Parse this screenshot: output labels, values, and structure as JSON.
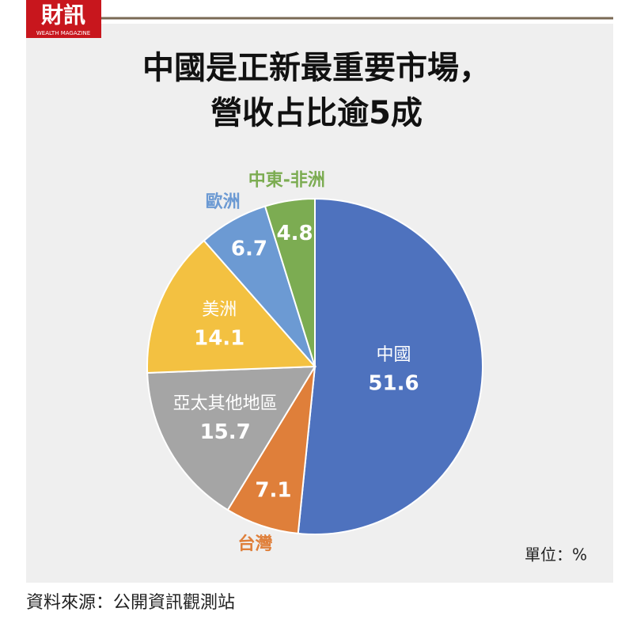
{
  "header": {
    "logo": "財訊",
    "logo_sub": "WEALTH MAGAZINE"
  },
  "chart_data": {
    "type": "pie",
    "title_lines": [
      "中國是正新最重要市場，",
      "營收占比逾5成"
    ],
    "categories": [
      "中國",
      "台灣",
      "亞太其他地區",
      "美洲",
      "歐洲",
      "中東-非洲"
    ],
    "values": [
      51.6,
      7.1,
      15.7,
      14.1,
      6.7,
      4.8
    ],
    "colors": [
      "#4e72be",
      "#df7f3a",
      "#a5a5a5",
      "#f3c141",
      "#6c9ad3",
      "#7cac52"
    ],
    "unit_note": "單位：%"
  },
  "footer": {
    "source": "資料來源：公開資訊觀測站"
  }
}
